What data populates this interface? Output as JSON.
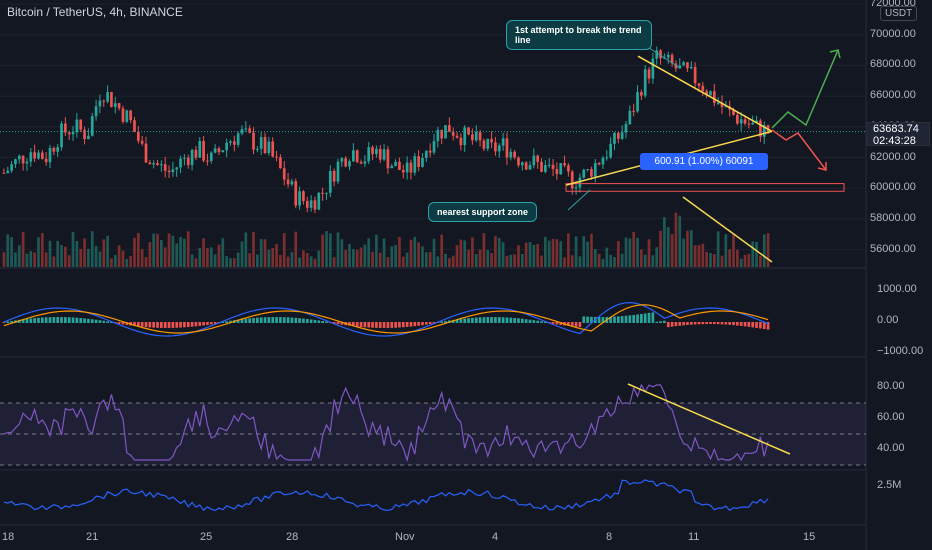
{
  "header": {
    "title": "Bitcoin / TetherUS, 4h, BINANCE",
    "currency": "USDT"
  },
  "price_axis": {
    "labels": [
      "72000.00",
      "70000.00",
      "68000.00",
      "66000.00",
      "64000.00",
      "62000.00",
      "60000.00",
      "58000.00",
      "56000.00"
    ],
    "values": [
      72000,
      70000,
      68000,
      66000,
      64000,
      62000,
      60000,
      58000,
      56000
    ]
  },
  "current_price": {
    "value": "63683.74",
    "countdown": "02:43:28",
    "color": "#26a69a"
  },
  "macd_axis": {
    "labels": [
      "1000.00",
      "0.00",
      "−1000.00"
    ]
  },
  "rsi_axis": {
    "labels": [
      "80.00",
      "60.00",
      "40.00"
    ]
  },
  "vol_axis": {
    "labels": [
      "2.5M"
    ]
  },
  "x_axis": {
    "labels": [
      "18",
      "21",
      "25",
      "28",
      "Nov",
      "4",
      "8",
      "11",
      "15"
    ]
  },
  "annotations": {
    "trend_break": "1st attempt to break the trend line",
    "support": "nearest support zone",
    "measure": "600.91 (1.00%) 60091"
  },
  "colors": {
    "up": "#26a69a",
    "down": "#ef5350",
    "trend": "#f7d94c",
    "macd": "#2962ff",
    "signal": "#ff9800",
    "rsi": "#7e57c2"
  },
  "chart_data": {
    "type": "candlestick",
    "title": "Bitcoin / TetherUS, 4h, BINANCE",
    "ylim": [
      54000,
      72000
    ],
    "support_zone": [
      59800,
      60300
    ],
    "closes_approx": [
      61000,
      61800,
      62500,
      62000,
      63500,
      64000,
      63500,
      66500,
      65500,
      64500,
      62500,
      61500,
      61000,
      62000,
      62500,
      61800,
      63000,
      63600,
      63000,
      62500,
      61000,
      59500,
      59000,
      59800,
      61500,
      62500,
      62000,
      62500,
      61500,
      61000,
      62000,
      63500,
      64000,
      63400,
      63000,
      62500,
      62800,
      62000,
      61700,
      61300,
      61000,
      60500,
      61000,
      62000,
      63000,
      64500,
      67000,
      68500,
      68000,
      67500,
      67000,
      66000,
      65000,
      64500,
      64000,
      63683.74
    ]
  }
}
